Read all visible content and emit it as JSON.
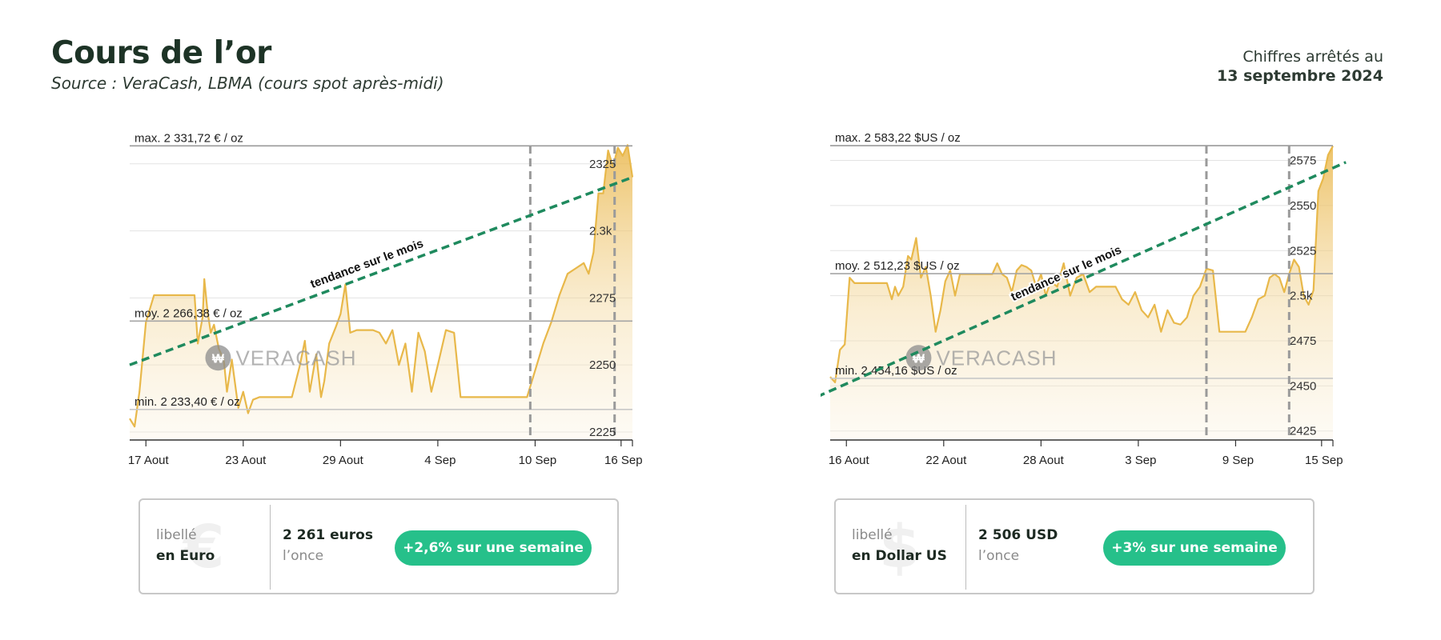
{
  "page": {
    "title": "Cours de l’or",
    "subtitle": "Source : VeraCash, LBMA (cours spot après-midi)",
    "asof_label": "Chiffres arrêtés au",
    "asof_date": "13 septembre 2024"
  },
  "colors": {
    "gold": "#e8b84a",
    "trend": "#1f8a5e",
    "title": "#1d3326",
    "pill": "#26c08a"
  },
  "chart_data": [
    {
      "type": "area",
      "currency": "EUR",
      "x_ticks": [
        "17 Aout",
        "23 Aout",
        "29 Aout",
        "4 Sep",
        "10 Sep",
        "16 Sep"
      ],
      "y_ticks": [
        "2225",
        "2250",
        "2275",
        "2.3k",
        "2325"
      ],
      "y_tick_values": [
        2225,
        2250,
        2275,
        2300,
        2325
      ],
      "ylim": [
        2222,
        2333
      ],
      "xlim": [
        0,
        31
      ],
      "x_tick_positions": [
        1,
        7,
        13,
        19,
        25,
        30.3
      ],
      "max_label": "max. 2 331,72 € / oz",
      "avg_label": "moy. 2 266,38 € / oz",
      "min_label": "min. 2 233,40 € / oz",
      "max": 2331.72,
      "avg": 2266.38,
      "min": 2233.4,
      "trend_label": "tendance sur le mois",
      "trend": [
        [
          0,
          2250
        ],
        [
          31,
          2320
        ]
      ],
      "markers_x": [
        24.7,
        29.9
      ],
      "watermark": "VERACASH",
      "series": [
        {
          "name": "",
          "x": [
            0,
            0.3,
            0.6,
            1,
            1.5,
            2,
            3,
            4,
            4.2,
            4.5,
            4.6,
            4.8,
            5,
            5.2,
            5.5,
            5.8,
            6,
            6.3,
            6.7,
            7,
            7.3,
            7.6,
            8,
            9,
            10,
            10.5,
            10.8,
            11.1,
            11.5,
            11.8,
            12,
            12.3,
            12.7,
            13,
            13.3,
            13.6,
            14,
            14.5,
            15,
            15.4,
            15.8,
            16.2,
            16.6,
            17,
            17.4,
            17.8,
            18.2,
            18.6,
            19,
            19.5,
            20,
            20.4,
            20.7,
            21,
            21.5,
            22,
            22.5,
            23,
            23.5,
            24,
            24.5,
            25,
            25.5,
            26,
            26.5,
            27,
            27.5,
            28,
            28.3,
            28.6,
            28.9,
            29.2,
            29.5,
            29.8,
            30.1,
            30.4,
            30.7,
            31
          ],
          "values": [
            2230,
            2227,
            2240,
            2266,
            2276,
            2276,
            2276,
            2276,
            2258,
            2268,
            2282,
            2270,
            2262,
            2265,
            2256,
            2252,
            2240,
            2252,
            2234,
            2240,
            2232,
            2237,
            2238,
            2238,
            2238,
            2250,
            2259,
            2240,
            2254,
            2238,
            2244,
            2258,
            2264,
            2269,
            2280,
            2262,
            2263,
            2263,
            2263,
            2262,
            2258,
            2263,
            2250,
            2258,
            2240,
            2262,
            2255,
            2240,
            2250,
            2263,
            2262,
            2238,
            2238,
            2238,
            2238,
            2238,
            2238,
            2238,
            2238,
            2238,
            2238,
            2248,
            2258,
            2266,
            2276,
            2284,
            2286,
            2288,
            2284,
            2292,
            2314,
            2314,
            2330,
            2324,
            2331,
            2328,
            2332,
            2320
          ]
        }
      ]
    },
    {
      "type": "area",
      "currency": "USD",
      "x_ticks": [
        "16 Aout",
        "22 Aout",
        "28 Aout",
        "3 Sep",
        "9 Sep",
        "15 Sep"
      ],
      "y_ticks": [
        "2425",
        "2450",
        "2475",
        "2.5k",
        "2525",
        "2550",
        "2575"
      ],
      "y_tick_values": [
        2425,
        2450,
        2475,
        2500,
        2525,
        2550,
        2575
      ],
      "ylim": [
        2420,
        2585
      ],
      "xlim": [
        0,
        31
      ],
      "x_tick_positions": [
        1,
        7,
        13,
        19,
        25,
        30.3
      ],
      "max_label": "max. 2 583,22 $US / oz",
      "avg_label": "moy. 2 512,23 $US / oz",
      "min_label": "min. 2 454,16 $US / oz",
      "max": 2583.22,
      "avg": 2512.23,
      "min": 2454.16,
      "trend_label": "tendance sur le mois",
      "trend": [
        [
          -0.8,
          2444
        ],
        [
          31.8,
          2574
        ]
      ],
      "markers_x": [
        23.2,
        28.3
      ],
      "watermark": "VERACASH",
      "series": [
        {
          "name": "",
          "x": [
            0,
            0.3,
            0.6,
            0.9,
            1.2,
            1.5,
            2,
            3,
            3.5,
            3.8,
            4,
            4.2,
            4.5,
            4.8,
            5,
            5.3,
            5.6,
            5.9,
            6.2,
            6.5,
            6.8,
            7.1,
            7.4,
            7.7,
            8,
            8.5,
            9,
            9.5,
            10,
            10.3,
            10.6,
            10.9,
            11.2,
            11.5,
            11.8,
            12.1,
            12.4,
            12.7,
            13,
            13.3,
            13.6,
            14,
            14.4,
            14.8,
            15.2,
            15.6,
            16,
            16.4,
            16.8,
            17.2,
            17.6,
            18,
            18.4,
            18.8,
            19.2,
            19.6,
            20,
            20.4,
            20.8,
            21.2,
            21.6,
            22,
            22.4,
            22.8,
            23.2,
            23.6,
            24,
            24.4,
            24.8,
            25.2,
            25.6,
            26,
            26.4,
            26.8,
            27.1,
            27.4,
            27.7,
            28,
            28.3,
            28.6,
            28.9,
            29.2,
            29.5,
            29.8,
            30.1,
            30.4,
            30.7,
            31
          ],
          "values": [
            2455,
            2452,
            2470,
            2473,
            2510,
            2507,
            2507,
            2507,
            2507,
            2498,
            2505,
            2500,
            2505,
            2522,
            2520,
            2532,
            2510,
            2516,
            2500,
            2480,
            2492,
            2508,
            2514,
            2500,
            2512,
            2512,
            2512,
            2512,
            2512,
            2518,
            2512,
            2510,
            2502,
            2514,
            2517,
            2516,
            2514,
            2505,
            2512,
            2500,
            2508,
            2505,
            2518,
            2500,
            2510,
            2512,
            2502,
            2505,
            2505,
            2505,
            2505,
            2498,
            2495,
            2502,
            2492,
            2488,
            2495,
            2480,
            2492,
            2485,
            2484,
            2488,
            2500,
            2505,
            2515,
            2514,
            2480,
            2480,
            2480,
            2480,
            2480,
            2488,
            2498,
            2500,
            2510,
            2512,
            2510,
            2502,
            2512,
            2520,
            2516,
            2500,
            2495,
            2503,
            2558,
            2565,
            2578,
            2583
          ]
        }
      ]
    }
  ],
  "cards": [
    {
      "glyph": "€",
      "label": "libellé",
      "currency_label": "en Euro",
      "price": "2 261 euros",
      "unit": "l’once",
      "change": "+2,6% sur une semaine"
    },
    {
      "glyph": "$",
      "label": "libellé",
      "currency_label": "en Dollar US",
      "price": "2 506  USD",
      "unit": "l’once",
      "change": "+3% sur une semaine"
    }
  ]
}
